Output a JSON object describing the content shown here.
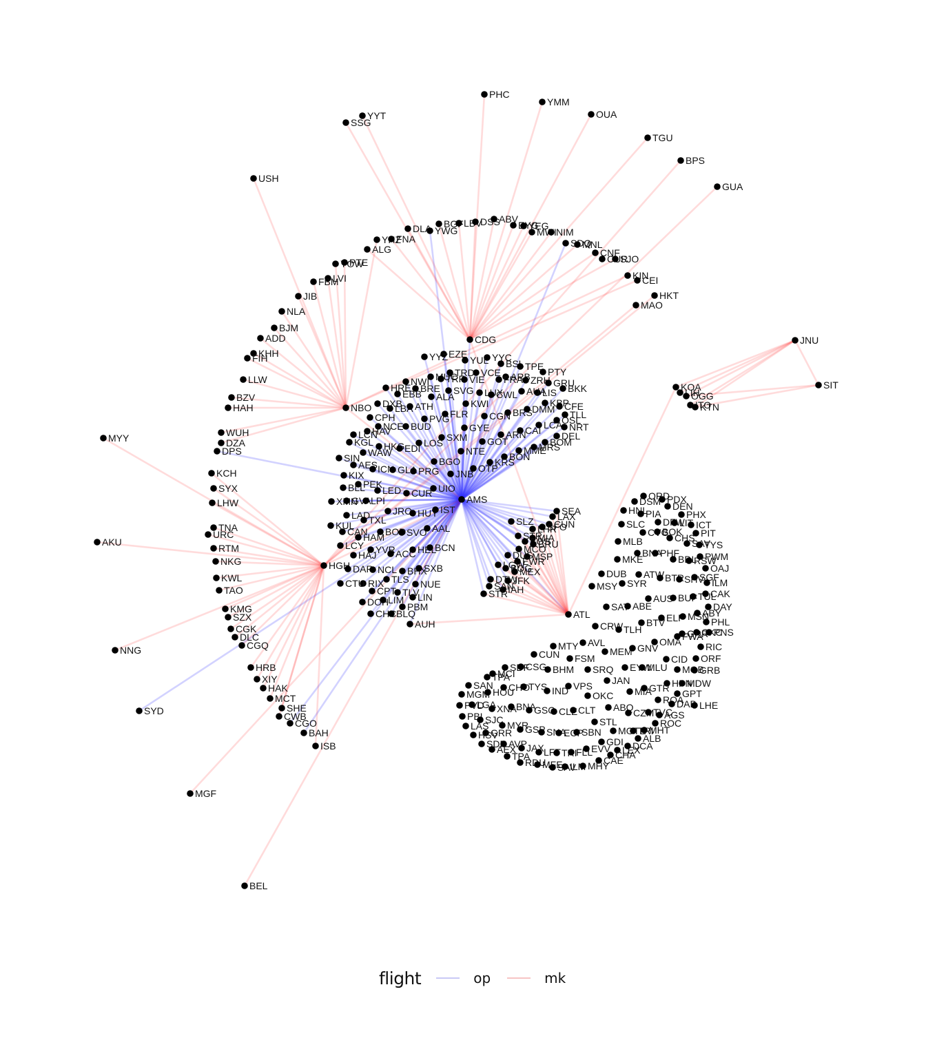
{
  "legend": {
    "title": "flight",
    "keys": [
      {
        "label": "op",
        "color": "#c9c9f5"
      },
      {
        "label": "mk",
        "color": "#f7c4c4"
      }
    ]
  },
  "colors": {
    "op": "#3333ff",
    "mk": "#ff2222",
    "node": "#000000"
  },
  "hubs": [
    "AMS",
    "ATL",
    "NBO",
    "HGH",
    "CDG",
    "JNU"
  ],
  "nodes": [
    "AMS",
    "ATL",
    "NBO",
    "HGH",
    "CDG",
    "JNU",
    "SIT",
    "PHC",
    "YMM",
    "OUA",
    "YYT",
    "SSG",
    "TGU",
    "BPS",
    "GUA",
    "USH",
    "DLA",
    "BGF",
    "LBV",
    "DSS",
    "ABV",
    "EYG",
    "YEG",
    "MWI",
    "NIM",
    "SDQ",
    "MNL",
    "CNF",
    "CUR2",
    "SJO",
    "YHZ",
    "FNA",
    "YWG",
    "ALG",
    "YOW",
    "PTE",
    "LVI",
    "FBM",
    "JIB",
    "KIN",
    "CEI",
    "HKT",
    "MAO",
    "NLA",
    "BJM",
    "ADD",
    "KHH",
    "FIH",
    "LLW",
    "BZV",
    "HAH",
    "MYY",
    "WUH",
    "DZA",
    "DPS",
    "KCH",
    "SYX",
    "LHW",
    "TNA",
    "URC",
    "AKU",
    "RTM",
    "NKG",
    "KWL",
    "TAO",
    "KMG",
    "SZX",
    "CGK",
    "DLC",
    "CGQ",
    "NNG",
    "HRB",
    "XIY",
    "HAK",
    "MCT",
    "SHE",
    "SYD",
    "CWB",
    "CGO",
    "BAH",
    "ISB",
    "MGF",
    "BEL",
    "EZE",
    "YYZ",
    "YUL",
    "YYC",
    "BSL",
    "TPE",
    "PTY",
    "VCE",
    "TRD",
    "ARB",
    "MUC",
    "TRF",
    "NWI",
    "VIE",
    "FRA2",
    "ZRH",
    "GRU",
    "BKK",
    "HRE",
    "BRE",
    "EBB",
    "SVG",
    "ALA",
    "LUX",
    "LIS",
    "AUA",
    "CWL",
    "KBP",
    "CFE",
    "DXB",
    "LBA",
    "ATH",
    "KWI",
    "FLR",
    "BRS",
    "DMM",
    "TLL",
    "CPH",
    "PVG",
    "CGN",
    "OSL",
    "NRT",
    "LCA",
    "CAI",
    "NCE",
    "BUD",
    "HAV",
    "GYE",
    "ARN",
    "LCN",
    "KGL",
    "DEL",
    "SXM",
    "LOS",
    "BOM",
    "GOT",
    "HKG",
    "EDI",
    "WAW",
    "NTE",
    "MME",
    "MRS",
    "BON",
    "SIN",
    "AES",
    "KRS",
    "BGO",
    "ICN",
    "GLA",
    "PRG",
    "OTP",
    "JNB",
    "KIX",
    "PEK",
    "BLL",
    "LED",
    "CUR",
    "UIO",
    "XMN",
    "GVA",
    "LPI",
    "LAD",
    "TXL",
    "JRO",
    "HUY",
    "IST",
    "KUL",
    "CAN",
    "HAM",
    "BOD",
    "SVO",
    "AAL",
    "LCY",
    "YVR",
    "ACC",
    "HEL",
    "BCN",
    "HAJ",
    "RIX",
    "DAR",
    "NCL",
    "BHX",
    "SXB",
    "CTU",
    "TLS",
    "NUE",
    "CPT",
    "TLV",
    "LIN",
    "DOH",
    "LIM",
    "PBM",
    "CHC",
    "BLQ",
    "AUH",
    "KOA",
    "LIH",
    "OGG",
    "ITO",
    "KTN",
    "SEA",
    "LAX",
    "SLZ",
    "CUN2",
    "LHR",
    "SFO",
    "STR2",
    "MIA2",
    "BOS",
    "MCO",
    "BRU",
    "MSP",
    "DUS",
    "EWR",
    "LGW",
    "BOG",
    "MEX",
    "JFK",
    "DTW",
    "IAH",
    "STR",
    "SAN2",
    "ORD",
    "HNL",
    "DSM",
    "PDX",
    "DEN",
    "DFW",
    "PIA",
    "PHX",
    "SLC",
    "LIT",
    "ICT",
    "CVG",
    "BOK",
    "PIT",
    "MLB",
    "CHS",
    "SAV",
    "TYS2",
    "BNA",
    "PHF",
    "BDL",
    "RSW",
    "PWM",
    "MKE",
    "OAJ",
    "DUB",
    "ATW",
    "BTR",
    "SHV",
    "SGF",
    "ILM",
    "MSY",
    "SYR",
    "AUS",
    "BUF",
    "TUL",
    "CAK",
    "SAT",
    "ABE",
    "DAY",
    "ELP",
    "MSN",
    "ABY",
    "PHL",
    "CRW",
    "TLH",
    "BTV",
    "GRR2",
    "OKC2",
    "PNS",
    "MTY",
    "AVL",
    "OMA",
    "FWA",
    "RIC",
    "MEM",
    "GNV",
    "CUN",
    "FSM",
    "CID",
    "ORF",
    "TPA",
    "SDF",
    "CSG",
    "BHM",
    "SRQ",
    "EYW",
    "MLU",
    "MOB",
    "GRB",
    "MCI",
    "JAN",
    "HPN",
    "MDW",
    "SAN",
    "CHO",
    "TYS",
    "VPS",
    "MIA",
    "GTR",
    "GPT",
    "MGM",
    "IND",
    "ABQ",
    "ROA",
    "DAB",
    "LHE",
    "PVD",
    "LGA",
    "HOU",
    "XNA",
    "BNA2",
    "GSO",
    "CLE",
    "CLT",
    "OKC",
    "CZM",
    "TVC",
    "AGS",
    "PBI",
    "SJC",
    "LAS",
    "GRR",
    "MYR",
    "GSP",
    "SNA",
    "ECP",
    "SBN",
    "STL",
    "MGTL",
    "TRI",
    "MHT",
    "ROC",
    "HSV",
    "SDF2",
    "AVP",
    "JAX",
    "LFT",
    "TRI2",
    "FLL",
    "ALB",
    "AEX",
    "TPA2",
    "GDI",
    "EVV",
    "LEX",
    "DCA",
    "CHA",
    "RDU",
    "MFE",
    "SAV2",
    "ILM2",
    "MHY",
    "CAE"
  ],
  "labels": {
    "CUR2": "CUR",
    "FRA2": "FRA",
    "CUN2": "CUN",
    "STR2": "STR",
    "MIA2": "MIA",
    "SAN2": "SAN",
    "TYS2": "TYS",
    "GRR2": "GRR",
    "OKC2": "OKC",
    "BNA2": "BNA",
    "MGTL": "MGTL",
    "SDF2": "SDF",
    "TRI2": "TRI",
    "TPA2": "TPA",
    "SAV2": "SAV",
    "ILM2": "ILM"
  },
  "edges": [
    [
      "AMS",
      "CDG",
      "op"
    ],
    [
      "AMS",
      "YYZ",
      "op"
    ],
    [
      "AMS",
      "YUL",
      "op"
    ],
    [
      "AMS",
      "EZE",
      "op"
    ],
    [
      "AMS",
      "BSL",
      "op"
    ],
    [
      "AMS",
      "TPE",
      "op"
    ],
    [
      "AMS",
      "VCE",
      "op"
    ],
    [
      "AMS",
      "TRD",
      "op"
    ],
    [
      "AMS",
      "MUC",
      "op"
    ],
    [
      "AMS",
      "VIE",
      "op"
    ],
    [
      "AMS",
      "ZRH",
      "op"
    ],
    [
      "AMS",
      "GRU",
      "op"
    ],
    [
      "AMS",
      "HRE",
      "op"
    ],
    [
      "AMS",
      "BRE",
      "op"
    ],
    [
      "AMS",
      "EBB",
      "op"
    ],
    [
      "AMS",
      "SVG",
      "op"
    ],
    [
      "AMS",
      "ALA",
      "op"
    ],
    [
      "AMS",
      "LUX",
      "op"
    ],
    [
      "AMS",
      "LIS",
      "op"
    ],
    [
      "AMS",
      "AUA",
      "op"
    ],
    [
      "AMS",
      "CWL",
      "op"
    ],
    [
      "AMS",
      "KBP",
      "op"
    ],
    [
      "AMS",
      "CFE",
      "op"
    ],
    [
      "AMS",
      "DXB",
      "op"
    ],
    [
      "AMS",
      "LBA",
      "op"
    ],
    [
      "AMS",
      "ATH",
      "op"
    ],
    [
      "AMS",
      "KWI",
      "op"
    ],
    [
      "AMS",
      "FLR",
      "op"
    ],
    [
      "AMS",
      "BRS",
      "op"
    ],
    [
      "AMS",
      "DMM",
      "op"
    ],
    [
      "AMS",
      "TLL",
      "op"
    ],
    [
      "AMS",
      "CPH",
      "op"
    ],
    [
      "AMS",
      "PVG",
      "op"
    ],
    [
      "AMS",
      "CGN",
      "op"
    ],
    [
      "AMS",
      "OSL",
      "op"
    ],
    [
      "AMS",
      "NRT",
      "op"
    ],
    [
      "AMS",
      "LCA",
      "op"
    ],
    [
      "AMS",
      "CAI",
      "op"
    ],
    [
      "AMS",
      "NCE",
      "op"
    ],
    [
      "AMS",
      "BUD",
      "op"
    ],
    [
      "AMS",
      "HAV",
      "op"
    ],
    [
      "AMS",
      "GYE",
      "op"
    ],
    [
      "AMS",
      "ARN",
      "op"
    ],
    [
      "AMS",
      "LCN",
      "op"
    ],
    [
      "AMS",
      "KGL",
      "op"
    ],
    [
      "AMS",
      "DEL",
      "op"
    ],
    [
      "AMS",
      "SXM",
      "op"
    ],
    [
      "AMS",
      "LOS",
      "op"
    ],
    [
      "AMS",
      "BOM",
      "op"
    ],
    [
      "AMS",
      "GOT",
      "op"
    ],
    [
      "AMS",
      "HKG",
      "op"
    ],
    [
      "AMS",
      "EDI",
      "op"
    ],
    [
      "AMS",
      "WAW",
      "op"
    ],
    [
      "AMS",
      "NTE",
      "op"
    ],
    [
      "AMS",
      "MME",
      "op"
    ],
    [
      "AMS",
      "MRS",
      "op"
    ],
    [
      "AMS",
      "BON",
      "op"
    ],
    [
      "AMS",
      "SIN",
      "op"
    ],
    [
      "AMS",
      "AES",
      "op"
    ],
    [
      "AMS",
      "KRS",
      "op"
    ],
    [
      "AMS",
      "BGO",
      "op"
    ],
    [
      "AMS",
      "ICN",
      "op"
    ],
    [
      "AMS",
      "GLA",
      "op"
    ],
    [
      "AMS",
      "PRG",
      "op"
    ],
    [
      "AMS",
      "OTP",
      "op"
    ],
    [
      "AMS",
      "JNB",
      "op"
    ],
    [
      "AMS",
      "KIX",
      "op"
    ],
    [
      "AMS",
      "PEK",
      "op"
    ],
    [
      "AMS",
      "BLL",
      "op"
    ],
    [
      "AMS",
      "LED",
      "op"
    ],
    [
      "AMS",
      "CUR",
      "op"
    ],
    [
      "AMS",
      "UIO",
      "op"
    ],
    [
      "AMS",
      "XMN",
      "op"
    ],
    [
      "AMS",
      "GVA",
      "op"
    ],
    [
      "AMS",
      "LPI",
      "op"
    ],
    [
      "AMS",
      "LAD",
      "op"
    ],
    [
      "AMS",
      "TXL",
      "op"
    ],
    [
      "AMS",
      "JRO",
      "op"
    ],
    [
      "AMS",
      "HUY",
      "op"
    ],
    [
      "AMS",
      "IST",
      "op"
    ],
    [
      "AMS",
      "KUL",
      "op"
    ],
    [
      "AMS",
      "CAN",
      "op"
    ],
    [
      "AMS",
      "HAM",
      "op"
    ],
    [
      "AMS",
      "BOD",
      "op"
    ],
    [
      "AMS",
      "SVO",
      "op"
    ],
    [
      "AMS",
      "AAL",
      "op"
    ],
    [
      "AMS",
      "LCY",
      "op"
    ],
    [
      "AMS",
      "YVR",
      "op"
    ],
    [
      "AMS",
      "ACC",
      "op"
    ],
    [
      "AMS",
      "HEL",
      "op"
    ],
    [
      "AMS",
      "BCN",
      "op"
    ],
    [
      "AMS",
      "HAJ",
      "op"
    ],
    [
      "AMS",
      "RIX",
      "op"
    ],
    [
      "AMS",
      "DAR",
      "op"
    ],
    [
      "AMS",
      "NCL",
      "op"
    ],
    [
      "AMS",
      "BHX",
      "op"
    ],
    [
      "AMS",
      "SXB",
      "op"
    ],
    [
      "AMS",
      "CTU",
      "op"
    ],
    [
      "AMS",
      "TLS",
      "op"
    ],
    [
      "AMS",
      "NUE",
      "op"
    ],
    [
      "AMS",
      "CPT",
      "op"
    ],
    [
      "AMS",
      "TLV",
      "op"
    ],
    [
      "AMS",
      "LIN",
      "op"
    ],
    [
      "AMS",
      "DOH",
      "op"
    ],
    [
      "AMS",
      "LIM",
      "op"
    ],
    [
      "AMS",
      "PBM",
      "op"
    ],
    [
      "AMS",
      "CHC",
      "op"
    ],
    [
      "AMS",
      "BLQ",
      "op"
    ],
    [
      "AMS",
      "AUH",
      "op"
    ],
    [
      "AMS",
      "YYC",
      "op"
    ],
    [
      "AMS",
      "ARB",
      "op"
    ],
    [
      "AMS",
      "TRF",
      "op"
    ],
    [
      "AMS",
      "NWI",
      "op"
    ],
    [
      "AMS",
      "FRA2",
      "op"
    ],
    [
      "AMS",
      "BKK",
      "op"
    ],
    [
      "AMS",
      "SEA",
      "op"
    ],
    [
      "AMS",
      "LAX",
      "op"
    ],
    [
      "AMS",
      "SLZ",
      "op"
    ],
    [
      "AMS",
      "CUN2",
      "op"
    ],
    [
      "AMS",
      "LHR",
      "op"
    ],
    [
      "AMS",
      "SFO",
      "op"
    ],
    [
      "AMS",
      "STR2",
      "op"
    ],
    [
      "AMS",
      "MIA2",
      "op"
    ],
    [
      "AMS",
      "BOS",
      "op"
    ],
    [
      "AMS",
      "MCO",
      "op"
    ],
    [
      "AMS",
      "BRU",
      "op"
    ],
    [
      "AMS",
      "MSP",
      "op"
    ],
    [
      "AMS",
      "DUS",
      "op"
    ],
    [
      "AMS",
      "EWR",
      "op"
    ],
    [
      "AMS",
      "LGW",
      "op"
    ],
    [
      "AMS",
      "BOG",
      "op"
    ],
    [
      "AMS",
      "MEX",
      "op"
    ],
    [
      "AMS",
      "JFK",
      "op"
    ],
    [
      "AMS",
      "DTW",
      "op"
    ],
    [
      "AMS",
      "IAH",
      "op"
    ],
    [
      "AMS",
      "STR",
      "op"
    ],
    [
      "AMS",
      "SAN2",
      "op"
    ],
    [
      "AMS",
      "ATL",
      "op"
    ],
    [
      "AMS",
      "DPS",
      "op"
    ],
    [
      "AMS",
      "SYD",
      "op"
    ],
    [
      "AMS",
      "CGO",
      "op"
    ],
    [
      "AMS",
      "BAH",
      "op"
    ],
    [
      "AMS",
      "YWG",
      "op"
    ],
    [
      "AMS",
      "SDQ",
      "op"
    ],
    [
      "AMS",
      "BEL",
      "mk"
    ],
    [
      "AMS",
      "MGF",
      "mk"
    ],
    [
      "AMS",
      "HGH",
      "mk"
    ],
    [
      "AMS",
      "NBO",
      "mk"
    ],
    [
      "CDG",
      "ABV",
      "mk"
    ],
    [
      "CDG",
      "DLA",
      "mk"
    ],
    [
      "CDG",
      "BGF",
      "mk"
    ],
    [
      "CDG",
      "LBV",
      "mk"
    ],
    [
      "CDG",
      "DSS",
      "mk"
    ],
    [
      "CDG",
      "OUA",
      "mk"
    ],
    [
      "CDG",
      "PHC",
      "mk"
    ],
    [
      "CDG",
      "YMM",
      "mk"
    ],
    [
      "CDG",
      "EYG",
      "mk"
    ],
    [
      "CDG",
      "NIM",
      "mk"
    ],
    [
      "CDG",
      "ALG",
      "mk"
    ],
    [
      "CDG",
      "FNA",
      "mk"
    ],
    [
      "CDG",
      "YYT",
      "mk"
    ],
    [
      "CDG",
      "SSG",
      "mk"
    ],
    [
      "CDG",
      "MWI",
      "mk"
    ],
    [
      "CDG",
      "YEG",
      "mk"
    ],
    [
      "CDG",
      "TGU",
      "mk"
    ],
    [
      "CDG",
      "SJO",
      "mk"
    ],
    [
      "CDG",
      "CNF",
      "mk"
    ],
    [
      "CDG",
      "MNL",
      "mk"
    ],
    [
      "NBO",
      "USH",
      "mk"
    ],
    [
      "NBO",
      "YHZ",
      "mk"
    ],
    [
      "NBO",
      "YOW",
      "mk"
    ],
    [
      "NBO",
      "PTE",
      "mk"
    ],
    [
      "NBO",
      "LVI",
      "mk"
    ],
    [
      "NBO",
      "FBM",
      "mk"
    ],
    [
      "NBO",
      "JIB",
      "mk"
    ],
    [
      "NBO",
      "NLA",
      "mk"
    ],
    [
      "NBO",
      "BJM",
      "mk"
    ],
    [
      "NBO",
      "ADD",
      "mk"
    ],
    [
      "NBO",
      "KHH",
      "mk"
    ],
    [
      "NBO",
      "FIH",
      "mk"
    ],
    [
      "NBO",
      "LLW",
      "mk"
    ],
    [
      "NBO",
      "BZV",
      "mk"
    ],
    [
      "NBO",
      "HAH",
      "mk"
    ],
    [
      "NBO",
      "WUH",
      "mk"
    ],
    [
      "NBO",
      "DZA",
      "mk"
    ],
    [
      "NBO",
      "KIN",
      "mk"
    ],
    [
      "NBO",
      "CEI",
      "mk"
    ],
    [
      "HGH",
      "MYY",
      "mk"
    ],
    [
      "HGH",
      "KCH",
      "mk"
    ],
    [
      "HGH",
      "SYX",
      "mk"
    ],
    [
      "HGH",
      "LHW",
      "mk"
    ],
    [
      "HGH",
      "TNA",
      "mk"
    ],
    [
      "HGH",
      "URC",
      "mk"
    ],
    [
      "HGH",
      "AKU",
      "mk"
    ],
    [
      "HGH",
      "RTM",
      "mk"
    ],
    [
      "HGH",
      "NKG",
      "mk"
    ],
    [
      "HGH",
      "KWL",
      "mk"
    ],
    [
      "HGH",
      "TAO",
      "mk"
    ],
    [
      "HGH",
      "KMG",
      "mk"
    ],
    [
      "HGH",
      "SZX",
      "mk"
    ],
    [
      "HGH",
      "CGK",
      "mk"
    ],
    [
      "HGH",
      "DLC",
      "mk"
    ],
    [
      "HGH",
      "CGQ",
      "mk"
    ],
    [
      "HGH",
      "NNG",
      "mk"
    ],
    [
      "HGH",
      "HRB",
      "mk"
    ],
    [
      "HGH",
      "XIY",
      "mk"
    ],
    [
      "HGH",
      "HAK",
      "mk"
    ],
    [
      "HGH",
      "MCT",
      "mk"
    ],
    [
      "HGH",
      "SHE",
      "mk"
    ],
    [
      "HGH",
      "CWB",
      "mk"
    ],
    [
      "HGH",
      "ISB",
      "mk"
    ],
    [
      "HGH",
      "HKT",
      "mk"
    ],
    [
      "HGH",
      "MAO",
      "mk"
    ],
    [
      "HGH",
      "BPS",
      "mk"
    ],
    [
      "HGH",
      "GUA",
      "mk"
    ],
    [
      "JNU",
      "SIT",
      "mk"
    ],
    [
      "JNU",
      "KOA",
      "mk"
    ],
    [
      "JNU",
      "LIH",
      "mk"
    ],
    [
      "JNU",
      "OGG",
      "mk"
    ],
    [
      "JNU",
      "ITO",
      "mk"
    ],
    [
      "JNU",
      "KTN",
      "mk"
    ],
    [
      "SIT",
      "KTN",
      "mk"
    ],
    [
      "SIT",
      "OGG",
      "mk"
    ],
    [
      "ATL",
      "SEA",
      "mk"
    ],
    [
      "ATL",
      "LAX",
      "mk"
    ],
    [
      "ATL",
      "SLZ",
      "mk"
    ],
    [
      "ATL",
      "LHR",
      "mk"
    ],
    [
      "ATL",
      "SFO",
      "mk"
    ],
    [
      "ATL",
      "BOS",
      "mk"
    ],
    [
      "ATL",
      "MCO",
      "mk"
    ],
    [
      "ATL",
      "MSP",
      "mk"
    ],
    [
      "ATL",
      "EWR",
      "mk"
    ],
    [
      "ATL",
      "JFK",
      "mk"
    ],
    [
      "ATL",
      "DTW",
      "mk"
    ],
    [
      "ATL",
      "IAH",
      "mk"
    ],
    [
      "ATL",
      "MEX",
      "mk"
    ],
    [
      "ATL",
      "BOG",
      "mk"
    ],
    [
      "ATL",
      "LGW",
      "mk"
    ],
    [
      "ATL",
      "DUS",
      "mk"
    ],
    [
      "ATL",
      "BRU",
      "mk"
    ],
    [
      "ATL",
      "STR",
      "mk"
    ],
    [
      "ATL",
      "CUN2",
      "mk"
    ],
    [
      "ATL",
      "MIA2",
      "mk"
    ],
    [
      "ATL",
      "KOA",
      "mk"
    ],
    [
      "ATL",
      "AUH",
      "mk"
    ],
    [
      "ATL",
      "CDG",
      "mk"
    ]
  ]
}
